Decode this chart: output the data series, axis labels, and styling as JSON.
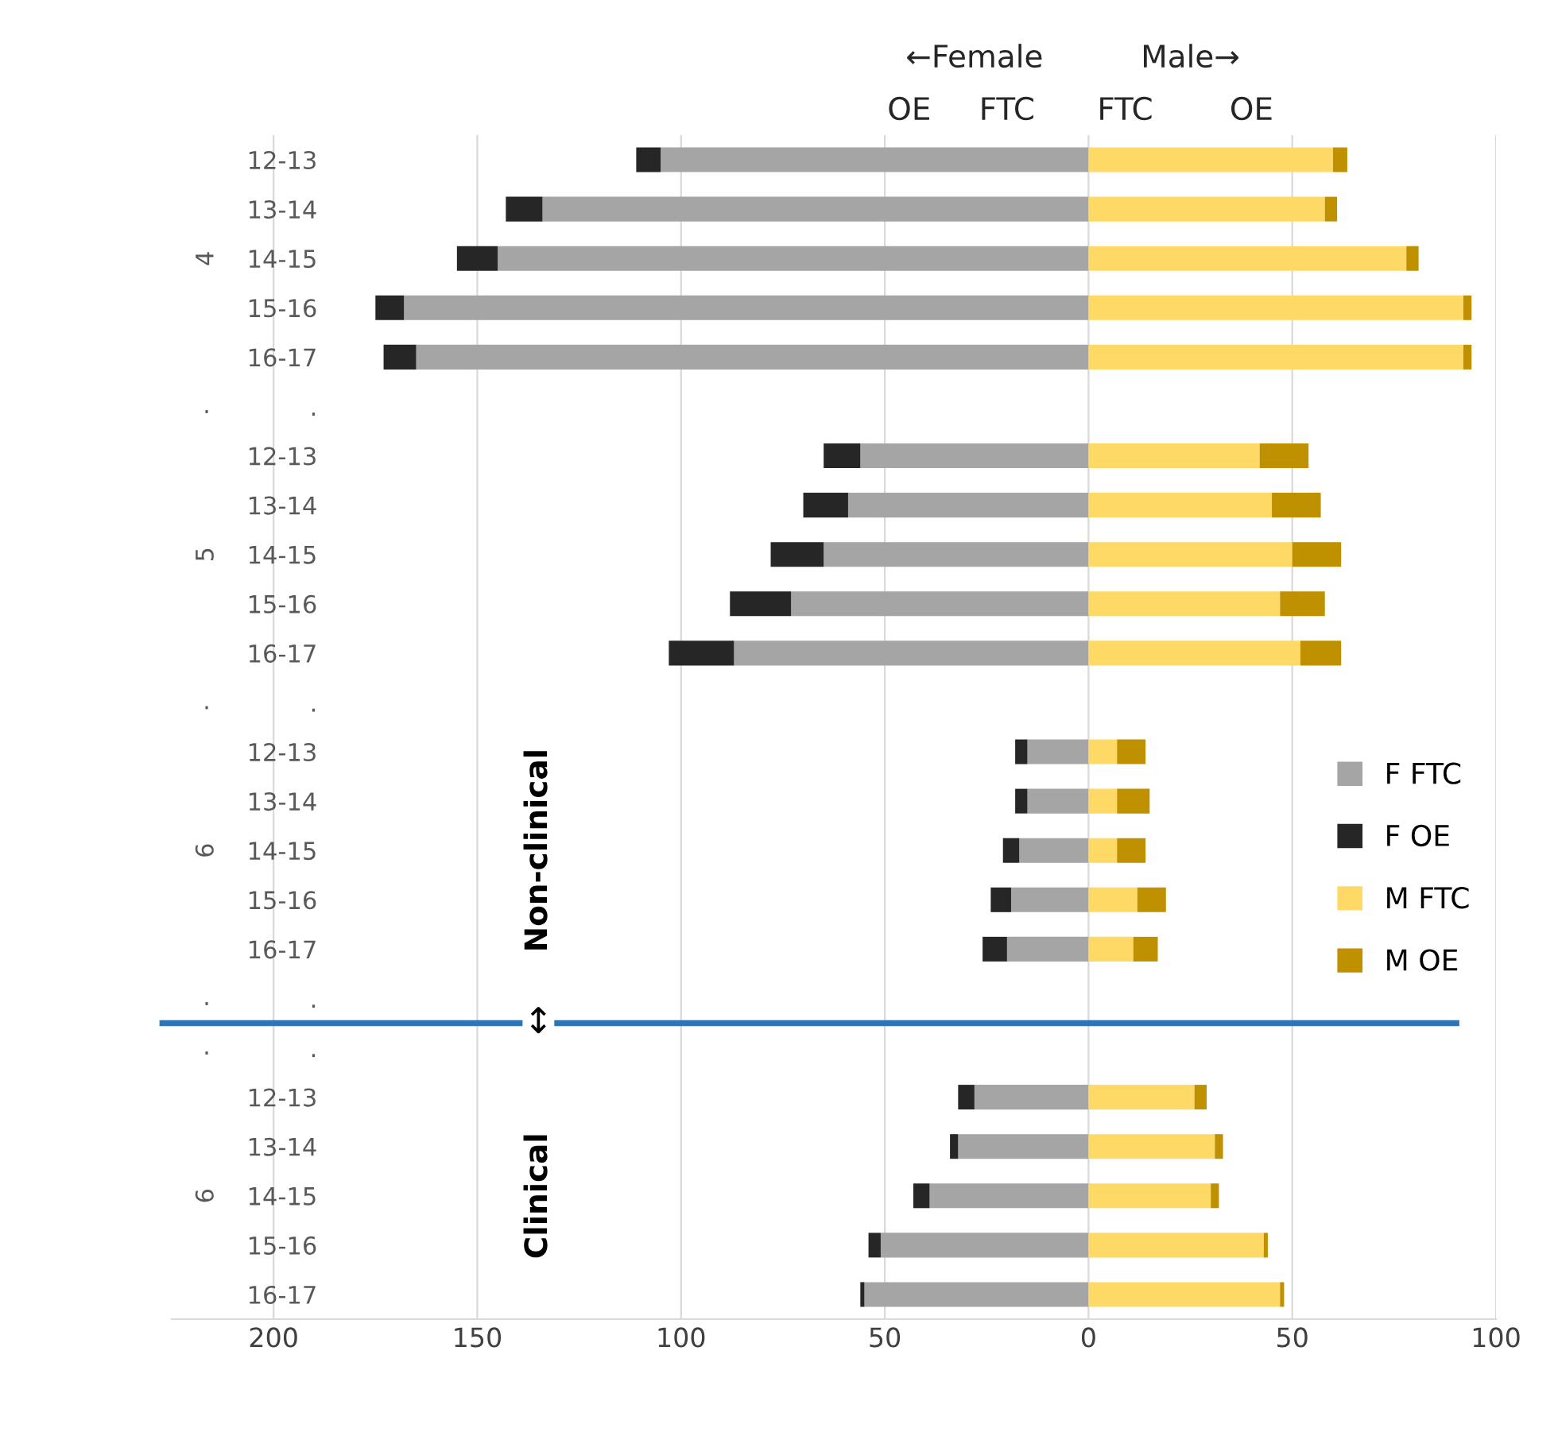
{
  "chart_data": {
    "type": "bar",
    "orientation": "horizontal",
    "stacked": true,
    "categories": [
      "12-13",
      "13-14",
      "14-15",
      "15-16",
      "16-17",
      ".",
      "12-13",
      "13-14",
      "14-15",
      "15-16",
      "16-17",
      ".",
      "12-13",
      "13-14",
      "14-15",
      "15-16",
      "16-17",
      ".",
      ".",
      "12-13",
      "13-14",
      "14-15",
      "15-16",
      "16-17"
    ],
    "series": [
      {
        "name": "F FTC",
        "color": "#a5a5a5",
        "values": [
          -105,
          -134,
          -145,
          -168,
          -165,
          null,
          -56,
          -59,
          -65,
          -73,
          -87,
          null,
          -15,
          -15,
          -17,
          -19,
          -20,
          null,
          null,
          -28,
          -32,
          -39,
          -51,
          -55
        ]
      },
      {
        "name": "F OE",
        "color": "#262626",
        "values": [
          -6,
          -9,
          -10,
          -7,
          -8,
          null,
          -9,
          -11,
          -13,
          -15,
          -16,
          null,
          -3,
          -3,
          -4,
          -5,
          -6,
          null,
          null,
          -4,
          -2,
          -4,
          -3,
          -1
        ]
      },
      {
        "name": "M FTC",
        "color": "#ffd966",
        "values": [
          60,
          58,
          78,
          92,
          92,
          null,
          42,
          45,
          50,
          47,
          52,
          null,
          7,
          7,
          7,
          12,
          11,
          null,
          null,
          26,
          31,
          30,
          43,
          47
        ]
      },
      {
        "name": "M OE",
        "color": "#bf9000",
        "values": [
          3.5,
          3,
          3,
          2,
          2,
          null,
          12,
          12,
          12,
          11,
          10,
          null,
          7,
          8,
          7,
          7,
          6,
          null,
          null,
          3,
          2,
          2,
          1,
          1
        ]
      }
    ],
    "xlim": [
      -225,
      100
    ],
    "xticks": [
      {
        "value": -200,
        "label": "200"
      },
      {
        "value": -150,
        "label": "150"
      },
      {
        "value": -100,
        "label": "100"
      },
      {
        "value": -50,
        "label": "50"
      },
      0,
      50,
      100
    ],
    "grid": "x",
    "legend": "right",
    "annotations": [
      "4",
      ".",
      "5",
      ".",
      "6",
      ".",
      ".",
      "6",
      "←Female",
      "Male→",
      "OE",
      "FTC",
      "FTC",
      "OE",
      "Non-clinical",
      "Clinical",
      "↕"
    ]
  }
}
